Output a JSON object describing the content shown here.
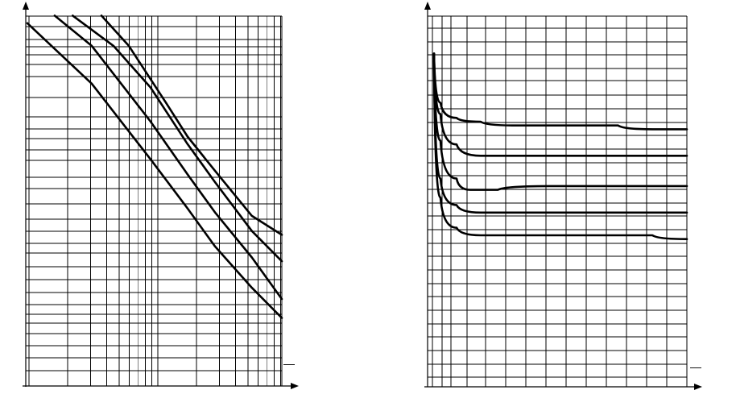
{
  "chart_data": [
    {
      "type": "line",
      "title": "",
      "xlabel": "",
      "ylabel": "",
      "xscale": "log",
      "grid": true,
      "legend": "none",
      "axis_marker": "—",
      "series": [
        {
          "points": [
            [
              0.03,
              0.96
            ],
            [
              0.1,
              0.8
            ],
            [
              0.3,
              0.6
            ],
            [
              0.6,
              0.47
            ],
            [
              1.0,
              0.37
            ],
            [
              2.0,
              0.26
            ],
            [
              3.5,
              0.18
            ]
          ]
        },
        {
          "points": [
            [
              0.05,
              0.98
            ],
            [
              0.1,
              0.9
            ],
            [
              0.3,
              0.7
            ],
            [
              0.6,
              0.56
            ],
            [
              1.0,
              0.46
            ],
            [
              2.0,
              0.34
            ],
            [
              3.5,
              0.23
            ]
          ]
        },
        {
          "points": [
            [
              0.07,
              0.98
            ],
            [
              0.15,
              0.9
            ],
            [
              0.3,
              0.79
            ],
            [
              0.6,
              0.64
            ],
            [
              1.0,
              0.54
            ],
            [
              2.0,
              0.41
            ],
            [
              3.5,
              0.33
            ]
          ]
        },
        {
          "points": [
            [
              0.12,
              0.98
            ],
            [
              0.2,
              0.9
            ],
            [
              0.4,
              0.75
            ],
            [
              0.6,
              0.66
            ],
            [
              1.0,
              0.57
            ],
            [
              2.0,
              0.45
            ],
            [
              3.5,
              0.4
            ]
          ]
        }
      ]
    },
    {
      "type": "line",
      "title": "",
      "xlabel": "",
      "ylabel": "",
      "xscale": "linear",
      "grid": true,
      "legend": "none",
      "axis_marker": "—",
      "series": [
        {
          "points": [
            [
              0.02,
              0.88
            ],
            [
              0.1,
              0.75
            ],
            [
              0.3,
              0.71
            ],
            [
              1,
              0.7
            ],
            [
              2,
              0.69
            ],
            [
              3,
              0.69
            ],
            [
              4,
              0.69
            ],
            [
              5,
              0.69
            ],
            [
              6,
              0.68
            ],
            [
              7,
              0.68
            ]
          ]
        },
        {
          "points": [
            [
              0.02,
              0.88
            ],
            [
              0.1,
              0.72
            ],
            [
              0.3,
              0.64
            ],
            [
              1,
              0.61
            ],
            [
              2,
              0.61
            ],
            [
              3,
              0.61
            ],
            [
              4,
              0.61
            ],
            [
              5,
              0.61
            ],
            [
              6,
              0.61
            ],
            [
              7,
              0.61
            ]
          ]
        },
        {
          "points": [
            [
              0.02,
              0.88
            ],
            [
              0.1,
              0.65
            ],
            [
              0.3,
              0.55
            ],
            [
              0.7,
              0.52
            ],
            [
              1.5,
              0.52
            ],
            [
              3,
              0.53
            ],
            [
              5,
              0.53
            ],
            [
              7,
              0.53
            ]
          ]
        },
        {
          "points": [
            [
              0.02,
              0.87
            ],
            [
              0.1,
              0.55
            ],
            [
              0.3,
              0.48
            ],
            [
              1,
              0.46
            ],
            [
              2,
              0.46
            ],
            [
              4,
              0.46
            ],
            [
              6,
              0.46
            ],
            [
              7,
              0.46
            ]
          ]
        },
        {
          "points": [
            [
              0.02,
              0.86
            ],
            [
              0.1,
              0.5
            ],
            [
              0.3,
              0.42
            ],
            [
              1,
              0.4
            ],
            [
              2,
              0.4
            ],
            [
              4,
              0.4
            ],
            [
              6,
              0.4
            ],
            [
              7,
              0.39
            ]
          ]
        }
      ]
    }
  ]
}
